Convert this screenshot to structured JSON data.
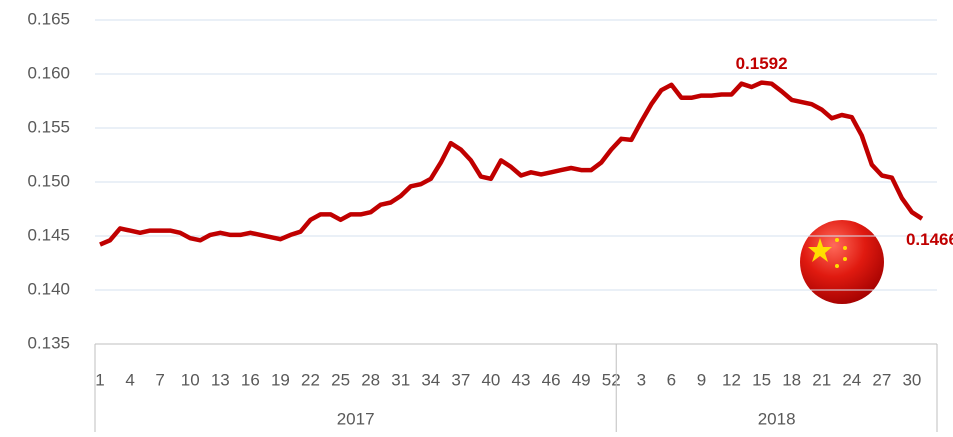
{
  "chart_data": {
    "type": "line",
    "categories": [
      "1",
      null,
      null,
      "4",
      null,
      null,
      "7",
      null,
      null,
      "10",
      null,
      null,
      "13",
      null,
      null,
      "16",
      null,
      null,
      "19",
      null,
      null,
      "22",
      null,
      null,
      "25",
      null,
      null,
      "28",
      null,
      null,
      "31",
      null,
      null,
      "34",
      null,
      null,
      "37",
      null,
      null,
      "40",
      null,
      null,
      "43",
      null,
      null,
      "46",
      null,
      null,
      "49",
      null,
      null,
      "52",
      null,
      null,
      "3",
      null,
      null,
      "6",
      null,
      null,
      "9",
      null,
      null,
      "12",
      null,
      null,
      "15",
      null,
      null,
      "18",
      null,
      null,
      "21",
      null,
      null,
      "24",
      null,
      null,
      "27",
      null,
      null,
      "30",
      null,
      null
    ],
    "groups": [
      {
        "label": "2017",
        "count": 52
      },
      {
        "label": "2018",
        "count": 32
      }
    ],
    "series": [
      {
        "color": "#c00000",
        "values": [
          0.1442,
          0.1446,
          0.1457,
          0.1455,
          0.1453,
          0.1455,
          0.1455,
          0.1455,
          0.1453,
          0.1448,
          0.1446,
          0.1451,
          0.1453,
          0.1451,
          0.1451,
          0.1453,
          0.1451,
          0.1449,
          0.1447,
          0.1451,
          0.1454,
          0.1465,
          0.147,
          0.147,
          0.1465,
          0.147,
          0.147,
          0.1472,
          0.1479,
          0.1481,
          0.1487,
          0.1496,
          0.1498,
          0.1503,
          0.1518,
          0.1536,
          0.153,
          0.152,
          0.1505,
          0.1503,
          0.152,
          0.1514,
          0.1506,
          0.1509,
          0.1507,
          0.1509,
          0.1511,
          0.1513,
          0.1511,
          0.1511,
          0.1518,
          0.153,
          0.154,
          0.1539,
          0.1556,
          0.1572,
          0.1585,
          0.159,
          0.1578,
          0.1578,
          0.158,
          0.158,
          0.1581,
          0.1581,
          0.1591,
          0.1588,
          0.1592,
          0.1591,
          0.1584,
          0.1576,
          0.1574,
          0.1572,
          0.1567,
          0.1559,
          0.1562,
          0.156,
          0.1543,
          0.1516,
          0.1506,
          0.1504,
          0.1485,
          0.1472,
          0.1466,
          null
        ]
      }
    ],
    "ylim": [
      0.135,
      0.165
    ],
    "yticks": [
      0.135,
      {
        "value": 0.14,
        "label": "0.140"
      },
      0.145,
      {
        "value": 0.15,
        "label": "0.150"
      },
      0.155,
      {
        "value": 0.16,
        "label": "0.160"
      },
      0.165
    ],
    "grid": true
  }
}
